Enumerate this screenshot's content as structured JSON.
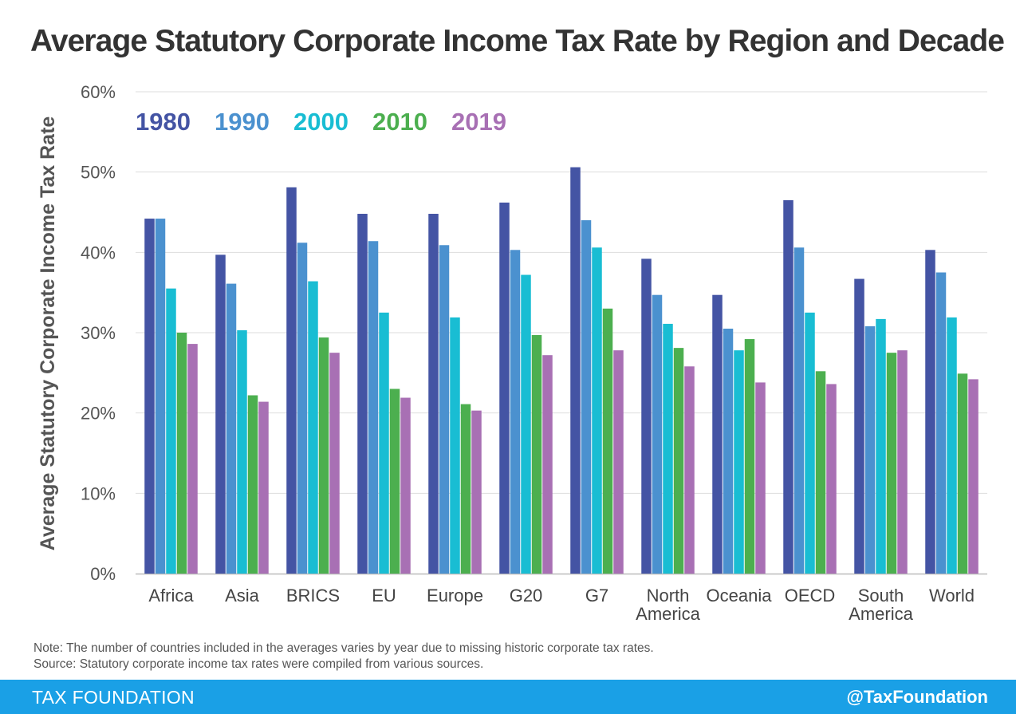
{
  "title": "Average Statutory Corporate Income Tax Rate by Region and Decade",
  "chart_data": {
    "type": "bar",
    "title": "Average Statutory Corporate Income Tax Rate by Region and Decade",
    "xlabel": "",
    "ylabel": "Average Statutory Corporate Income Tax Rate",
    "ylim": [
      0,
      60
    ],
    "yticks": [
      0,
      10,
      20,
      30,
      40,
      50,
      60
    ],
    "ytick_labels": [
      "0%",
      "10%",
      "20%",
      "30%",
      "40%",
      "50%",
      "60%"
    ],
    "grid": true,
    "legend_position": "top-left",
    "categories": [
      "Africa",
      "Asia",
      "BRICS",
      "EU",
      "Europe",
      "G20",
      "G7",
      "North America",
      "Oceania",
      "OECD",
      "South America",
      "World"
    ],
    "category_labels": [
      [
        "Africa"
      ],
      [
        "Asia"
      ],
      [
        "BRICS"
      ],
      [
        "EU"
      ],
      [
        "Europe"
      ],
      [
        "G20"
      ],
      [
        "G7"
      ],
      [
        "North",
        "America"
      ],
      [
        "Oceania"
      ],
      [
        "OECD"
      ],
      [
        "South",
        "America"
      ],
      [
        "World"
      ]
    ],
    "series": [
      {
        "name": "1980",
        "color": "#4454a4",
        "values": [
          44.2,
          39.7,
          48.1,
          44.8,
          44.8,
          46.2,
          50.6,
          39.2,
          34.7,
          46.5,
          36.7,
          40.3
        ]
      },
      {
        "name": "1990",
        "color": "#4b91cf",
        "values": [
          44.2,
          36.1,
          41.2,
          41.4,
          40.9,
          40.3,
          44.0,
          34.7,
          30.5,
          40.6,
          30.8,
          37.5
        ]
      },
      {
        "name": "2000",
        "color": "#19bdd3",
        "values": [
          35.5,
          30.3,
          36.4,
          32.5,
          31.9,
          37.2,
          40.6,
          31.1,
          27.8,
          32.5,
          31.7,
          31.9
        ]
      },
      {
        "name": "2010",
        "color": "#4caf4f",
        "values": [
          30.0,
          22.2,
          29.4,
          23.0,
          21.1,
          29.7,
          33.0,
          28.1,
          29.2,
          25.2,
          27.5,
          24.9
        ]
      },
      {
        "name": "2019",
        "color": "#a870b4",
        "values": [
          28.6,
          21.4,
          27.5,
          21.9,
          20.3,
          27.2,
          27.8,
          25.8,
          23.8,
          23.6,
          27.8,
          24.2
        ]
      }
    ]
  },
  "notes": {
    "note": "Note: The number of countries included in the averages varies by year due to missing historic corporate tax rates.",
    "source": "Source: Statutory corporate income tax rates were compiled from various sources."
  },
  "footer": {
    "brand": "TAX FOUNDATION",
    "handle": "@TaxFoundation",
    "color": "#1aa0e6"
  }
}
